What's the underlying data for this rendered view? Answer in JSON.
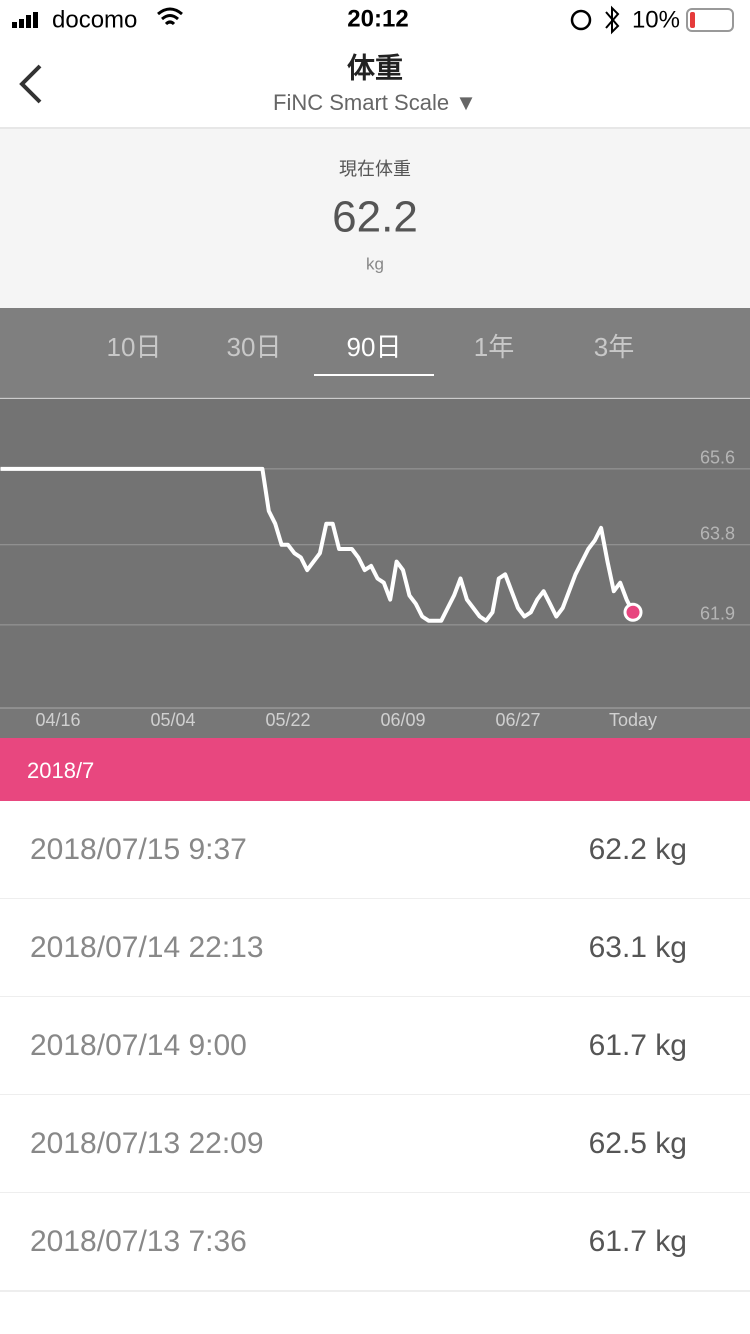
{
  "status_bar": {
    "carrier": "docomo",
    "time": "20:12",
    "battery": "10%"
  },
  "header": {
    "title": "体重",
    "subtitle": "FiNC Smart Scale ▼"
  },
  "current": {
    "label": "現在体重",
    "value": "62.2",
    "unit": "kg"
  },
  "tabs": {
    "items": [
      "10日",
      "30日",
      "90日",
      "1年",
      "3年"
    ],
    "selected": 2
  },
  "chart_data": {
    "type": "line",
    "categories": [
      null,
      null,
      null,
      null,
      null,
      null,
      null,
      null,
      null,
      "04/16",
      null,
      null,
      null,
      null,
      null,
      null,
      null,
      null,
      null,
      null,
      null,
      null,
      null,
      null,
      null,
      null,
      null,
      "05/04",
      null,
      null,
      null,
      null,
      null,
      null,
      null,
      null,
      null,
      null,
      null,
      null,
      null,
      null,
      null,
      null,
      null,
      "05/22",
      null,
      null,
      null,
      null,
      null,
      null,
      null,
      null,
      null,
      null,
      null,
      null,
      null,
      null,
      null,
      null,
      null,
      "06/09",
      null,
      null,
      null,
      null,
      null,
      null,
      null,
      null,
      null,
      null,
      null,
      null,
      null,
      null,
      null,
      null,
      null,
      "06/27",
      null,
      null,
      null,
      null,
      null,
      null,
      null,
      null,
      null,
      null,
      null,
      null,
      null,
      null,
      null,
      null,
      null,
      "Today",
      null,
      null,
      null,
      null,
      null,
      null,
      null,
      null,
      null,
      null,
      null,
      null,
      null,
      null,
      null,
      null,
      null
    ],
    "series": [
      {
        "color": "#ffffff",
        "marker_color": "#e8457f",
        "values": [
          65.6,
          65.6,
          65.6,
          65.6,
          65.6,
          65.6,
          65.6,
          65.6,
          65.6,
          65.6,
          65.6,
          65.6,
          65.6,
          65.6,
          65.6,
          65.6,
          65.6,
          65.6,
          65.6,
          65.6,
          65.6,
          65.6,
          65.6,
          65.6,
          65.6,
          65.6,
          65.6,
          65.6,
          65.6,
          65.6,
          65.6,
          65.6,
          65.6,
          65.6,
          65.6,
          65.6,
          65.6,
          65.6,
          65.6,
          65.6,
          65.6,
          65.6,
          64.6,
          64.3,
          63.8,
          63.8,
          63.6,
          63.5,
          63.2,
          63.4,
          63.6,
          64.3,
          64.3,
          63.7,
          63.7,
          63.7,
          63.5,
          63.2,
          63.3,
          63.0,
          62.9,
          62.5,
          63.4,
          63.2,
          62.6,
          62.4,
          62.1,
          62.0,
          62.0,
          62.0,
          62.3,
          62.6,
          63.0,
          62.5,
          62.3,
          62.1,
          62.0,
          62.2,
          63.0,
          63.1,
          62.7,
          62.3,
          62.1,
          62.2,
          62.5,
          62.7,
          62.4,
          62.1,
          62.3,
          62.7,
          63.1,
          63.4,
          63.7,
          63.9,
          64.2,
          63.4,
          62.7,
          62.9,
          62.5,
          62.2,
          null,
          null,
          null,
          null,
          null,
          null,
          null,
          null,
          null,
          null,
          null,
          null,
          null,
          null,
          null,
          null,
          null
        ]
      }
    ],
    "ylim": [
      59.93,
      67.28
    ],
    "yticks": [
      61.9,
      63.8,
      65.6
    ],
    "grid": true
  },
  "list": {
    "month": "2018/7",
    "rows": [
      [
        "2018/07/15 9:37",
        "62.2 kg"
      ],
      [
        "2018/07/14 22:13",
        "63.1 kg"
      ],
      [
        "2018/07/14 9:00",
        "61.7 kg"
      ],
      [
        "2018/07/13 22:09",
        "62.5 kg"
      ],
      [
        "2018/07/13 7:36",
        "61.7 kg"
      ]
    ]
  }
}
